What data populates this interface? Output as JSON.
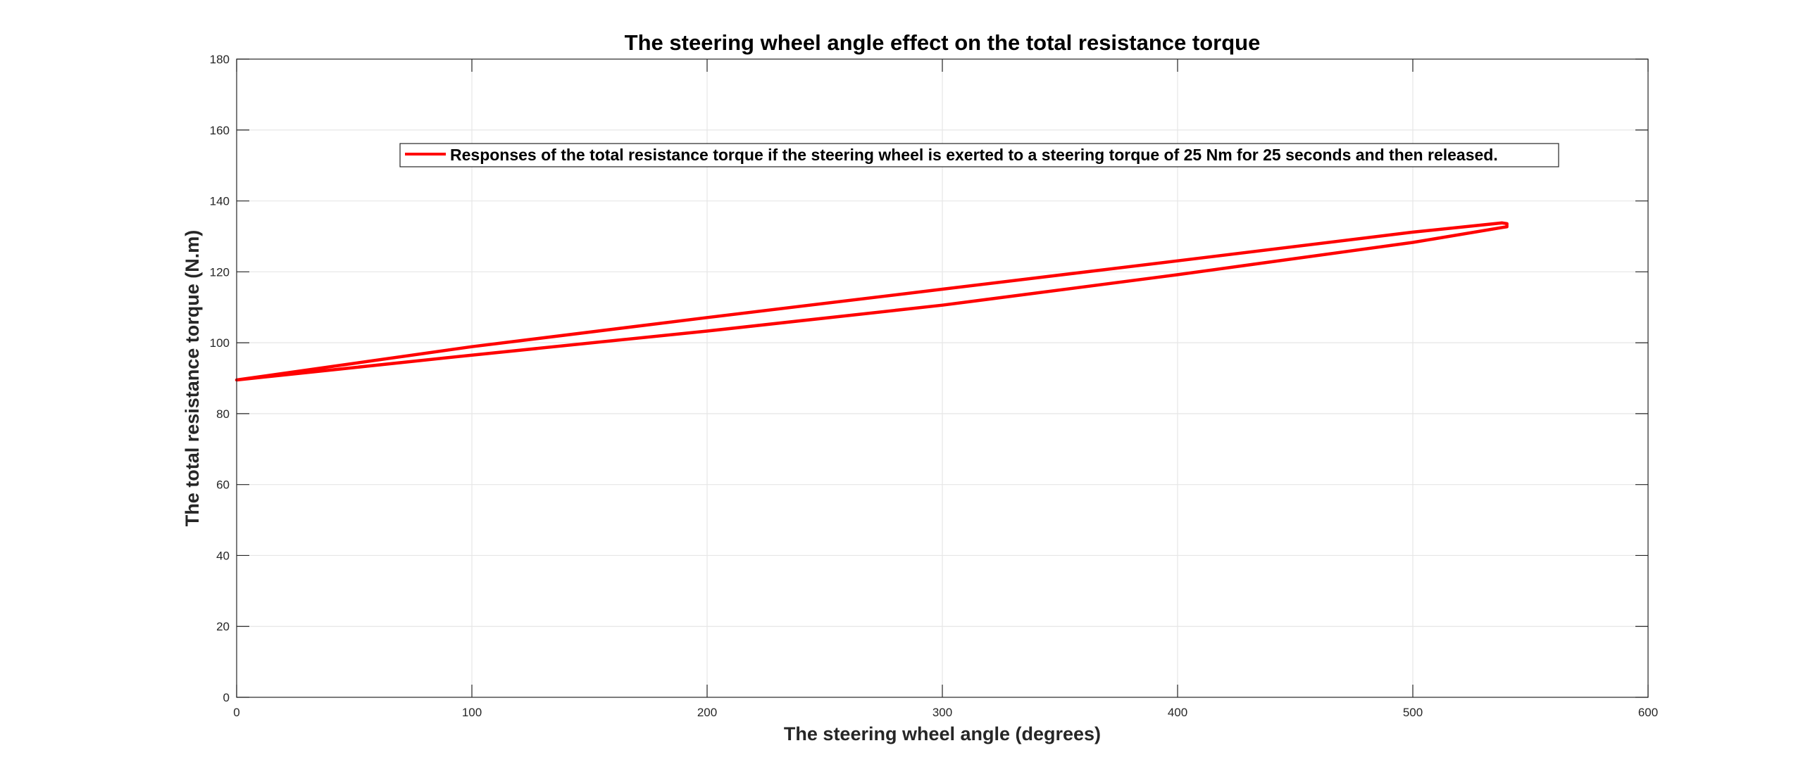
{
  "chart_data": {
    "type": "line",
    "title": "The steering wheel angle effect on the total resistance torque",
    "xlabel": "The steering wheel angle (degrees)",
    "ylabel": "The total resistance torque (N.m)",
    "xlim": [
      0,
      600
    ],
    "ylim": [
      0,
      180
    ],
    "xticks": [
      0,
      100,
      200,
      300,
      400,
      500,
      600
    ],
    "yticks": [
      0,
      20,
      40,
      60,
      80,
      100,
      120,
      140,
      160,
      180
    ],
    "xtick_labels": [
      "0",
      "100",
      "200",
      "300",
      "400",
      "500",
      "600"
    ],
    "ytick_labels": [
      "0",
      "20",
      "40",
      "60",
      "80",
      "100",
      "120",
      "140",
      "160",
      "180"
    ],
    "grid": true,
    "legend_position": "top",
    "series": [
      {
        "name": "Responses of the total resistance torque if the steering wheel is exerted to a steering torque of 25 Nm for 25 seconds and then released.",
        "color": "#ff0000",
        "x": [
          0,
          100,
          200,
          300,
          400,
          500,
          538,
          540,
          540,
          538,
          500,
          400,
          300,
          200,
          100,
          0
        ],
        "y": [
          89.5,
          96.5,
          103.3,
          110.6,
          119.2,
          128.3,
          132.5,
          132.7,
          133.6,
          133.8,
          131.2,
          123.1,
          115.1,
          107.1,
          98.9,
          89.5
        ]
      }
    ]
  }
}
